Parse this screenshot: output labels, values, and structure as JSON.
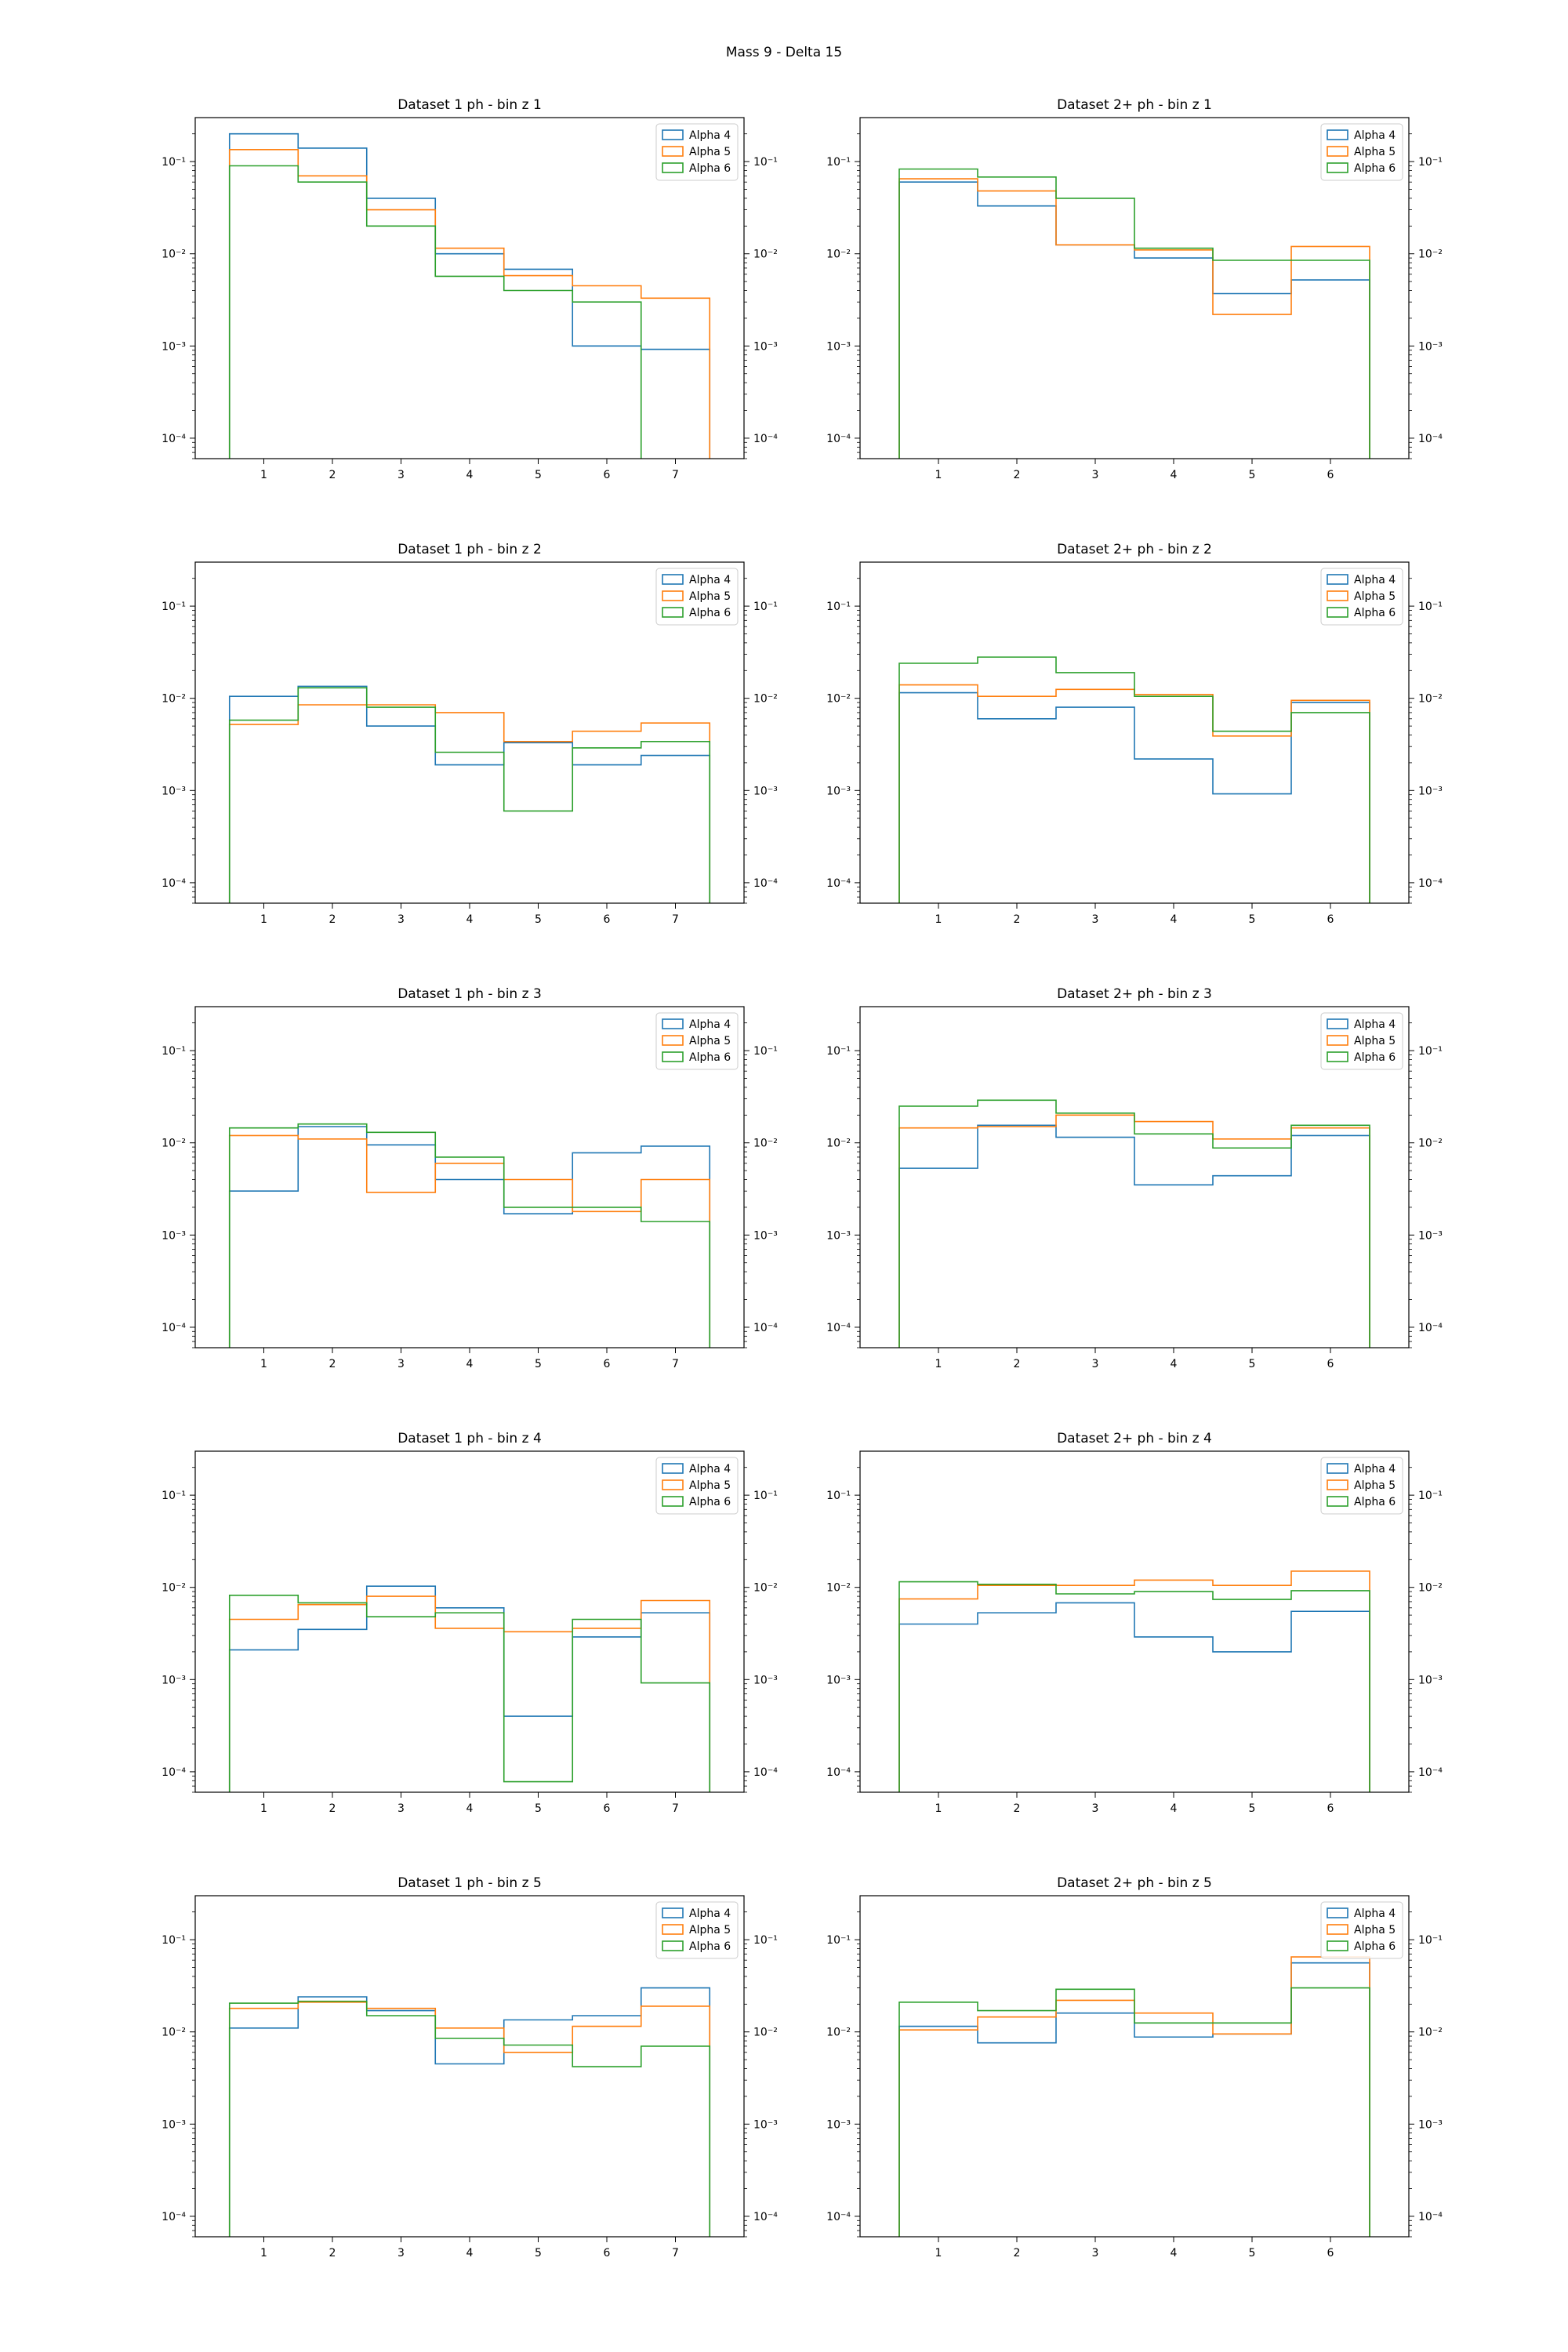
{
  "figure": {
    "title": "Mass 9 - Delta 15"
  },
  "legend_labels": [
    "Alpha 4",
    "Alpha 5",
    "Alpha 6"
  ],
  "colors": {
    "Alpha 4": "#1f77b4",
    "Alpha 5": "#ff7f0e",
    "Alpha 6": "#2ca02c"
  },
  "y_tick_labels": [
    "10⁻⁴",
    "10⁻³",
    "10⁻²",
    "10⁻¹"
  ],
  "chart_data": [
    {
      "type": "histogram-step",
      "title": "Dataset 1 ph - bin z 1",
      "yscale": "log",
      "ylim": [
        6e-05,
        0.3
      ],
      "xlim": [
        -0.0,
        8.0
      ],
      "xticks": [
        1,
        2,
        3,
        4,
        5,
        6,
        7
      ],
      "legend": "upper right",
      "grid": false,
      "categories": [
        1,
        2,
        3,
        4,
        5,
        6,
        7
      ],
      "series": [
        {
          "name": "Alpha 4",
          "values": [
            0.2,
            0.14,
            0.04,
            0.01,
            0.0068,
            0.001,
            0.00092
          ]
        },
        {
          "name": "Alpha 5",
          "values": [
            0.135,
            0.07,
            0.03,
            0.0115,
            0.0058,
            0.0045,
            0.0033
          ]
        },
        {
          "name": "Alpha 6",
          "values": [
            0.09,
            0.06,
            0.02,
            0.0057,
            0.004,
            0.003,
            0
          ]
        }
      ]
    },
    {
      "type": "histogram-step",
      "title": "Dataset 2+ ph - bin z 1",
      "yscale": "log",
      "ylim": [
        6e-05,
        0.3
      ],
      "xlim": [
        0.0,
        7.0
      ],
      "xticks": [
        1,
        2,
        3,
        4,
        5,
        6
      ],
      "legend": "upper right",
      "grid": false,
      "categories": [
        1,
        2,
        3,
        4,
        5,
        6
      ],
      "series": [
        {
          "name": "Alpha 4",
          "values": [
            0.06,
            0.033,
            0.0125,
            0.009,
            0.0037,
            0.0052
          ]
        },
        {
          "name": "Alpha 5",
          "values": [
            0.065,
            0.048,
            0.0125,
            0.011,
            0.0022,
            0.012
          ]
        },
        {
          "name": "Alpha 6",
          "values": [
            0.083,
            0.068,
            0.04,
            0.0115,
            0.0085,
            0.0085
          ]
        }
      ]
    },
    {
      "type": "histogram-step",
      "title": "Dataset 1 ph - bin z 2",
      "yscale": "log",
      "ylim": [
        6e-05,
        0.3
      ],
      "xlim": [
        0.0,
        8.0
      ],
      "xticks": [
        1,
        2,
        3,
        4,
        5,
        6,
        7
      ],
      "legend": "upper right",
      "grid": false,
      "categories": [
        1,
        2,
        3,
        4,
        5,
        6,
        7
      ],
      "series": [
        {
          "name": "Alpha 4",
          "values": [
            0.0105,
            0.0135,
            0.005,
            0.0019,
            0.0033,
            0.0019,
            0.0024
          ]
        },
        {
          "name": "Alpha 5",
          "values": [
            0.0052,
            0.0085,
            0.0085,
            0.007,
            0.0034,
            0.0044,
            0.0054
          ]
        },
        {
          "name": "Alpha 6",
          "values": [
            0.0058,
            0.013,
            0.008,
            0.0026,
            0.0006,
            0.0029,
            0.0034
          ]
        }
      ]
    },
    {
      "type": "histogram-step",
      "title": "Dataset 2+ ph - bin z 2",
      "yscale": "log",
      "ylim": [
        6e-05,
        0.3
      ],
      "xlim": [
        0.0,
        7.0
      ],
      "xticks": [
        1,
        2,
        3,
        4,
        5,
        6
      ],
      "legend": "upper right",
      "grid": false,
      "categories": [
        1,
        2,
        3,
        4,
        5,
        6
      ],
      "series": [
        {
          "name": "Alpha 4",
          "values": [
            0.0115,
            0.006,
            0.008,
            0.0022,
            0.00092,
            0.009
          ]
        },
        {
          "name": "Alpha 5",
          "values": [
            0.014,
            0.0105,
            0.0125,
            0.011,
            0.0039,
            0.0095
          ]
        },
        {
          "name": "Alpha 6",
          "values": [
            0.024,
            0.028,
            0.019,
            0.0105,
            0.0044,
            0.007
          ]
        }
      ]
    },
    {
      "type": "histogram-step",
      "title": "Dataset 1 ph - bin z 3",
      "yscale": "log",
      "ylim": [
        6e-05,
        0.3
      ],
      "xlim": [
        0.0,
        8.0
      ],
      "xticks": [
        1,
        2,
        3,
        4,
        5,
        6,
        7
      ],
      "legend": "upper right",
      "grid": false,
      "categories": [
        1,
        2,
        3,
        4,
        5,
        6,
        7
      ],
      "series": [
        {
          "name": "Alpha 4",
          "values": [
            0.003,
            0.015,
            0.0095,
            0.004,
            0.0017,
            0.0078,
            0.0092
          ]
        },
        {
          "name": "Alpha 5",
          "values": [
            0.012,
            0.011,
            0.0029,
            0.006,
            0.004,
            0.0018,
            0.004
          ]
        },
        {
          "name": "Alpha 6",
          "values": [
            0.0145,
            0.016,
            0.013,
            0.007,
            0.002,
            0.002,
            0.0014
          ]
        }
      ]
    },
    {
      "type": "histogram-step",
      "title": "Dataset 2+ ph - bin z 3",
      "yscale": "log",
      "ylim": [
        6e-05,
        0.3
      ],
      "xlim": [
        0.0,
        7.0
      ],
      "xticks": [
        1,
        2,
        3,
        4,
        5,
        6
      ],
      "legend": "upper right",
      "grid": false,
      "categories": [
        1,
        2,
        3,
        4,
        5,
        6
      ],
      "series": [
        {
          "name": "Alpha 4",
          "values": [
            0.0053,
            0.0155,
            0.0115,
            0.0035,
            0.0044,
            0.012
          ]
        },
        {
          "name": "Alpha 5",
          "values": [
            0.0145,
            0.015,
            0.02,
            0.017,
            0.011,
            0.0145
          ]
        },
        {
          "name": "Alpha 6",
          "values": [
            0.025,
            0.029,
            0.021,
            0.0125,
            0.0088,
            0.0155
          ]
        }
      ]
    },
    {
      "type": "histogram-step",
      "title": "Dataset 1 ph - bin z 4",
      "yscale": "log",
      "ylim": [
        6e-05,
        0.3
      ],
      "xlim": [
        0.0,
        8.0
      ],
      "xticks": [
        1,
        2,
        3,
        4,
        5,
        6,
        7
      ],
      "legend": "upper right",
      "grid": false,
      "categories": [
        1,
        2,
        3,
        4,
        5,
        6,
        7
      ],
      "series": [
        {
          "name": "Alpha 4",
          "values": [
            0.0021,
            0.0035,
            0.0103,
            0.006,
            0.0004,
            0.0029,
            0.0053
          ]
        },
        {
          "name": "Alpha 5",
          "values": [
            0.0045,
            0.0065,
            0.008,
            0.0036,
            0.0033,
            0.0036,
            0.0072
          ]
        },
        {
          "name": "Alpha 6",
          "values": [
            0.0082,
            0.0068,
            0.0048,
            0.0053,
            7.8e-05,
            0.0045,
            0.00092
          ]
        }
      ]
    },
    {
      "type": "histogram-step",
      "title": "Dataset 2+ ph - bin z 4",
      "yscale": "log",
      "ylim": [
        6e-05,
        0.3
      ],
      "xlim": [
        0.0,
        7.0
      ],
      "xticks": [
        1,
        2,
        3,
        4,
        5,
        6
      ],
      "legend": "upper right",
      "grid": false,
      "categories": [
        1,
        2,
        3,
        4,
        5,
        6
      ],
      "series": [
        {
          "name": "Alpha 4",
          "values": [
            0.004,
            0.0053,
            0.0068,
            0.0029,
            0.002,
            0.0055
          ]
        },
        {
          "name": "Alpha 5",
          "values": [
            0.0075,
            0.0105,
            0.0105,
            0.012,
            0.0105,
            0.015
          ]
        },
        {
          "name": "Alpha 6",
          "values": [
            0.0115,
            0.0108,
            0.0085,
            0.009,
            0.0074,
            0.0092
          ]
        }
      ]
    },
    {
      "type": "histogram-step",
      "title": "Dataset 1 ph - bin z 5",
      "yscale": "log",
      "ylim": [
        6e-05,
        0.3
      ],
      "xlim": [
        0.0,
        8.0
      ],
      "xticks": [
        1,
        2,
        3,
        4,
        5,
        6,
        7
      ],
      "legend": "upper right",
      "grid": false,
      "categories": [
        1,
        2,
        3,
        4,
        5,
        6,
        7
      ],
      "series": [
        {
          "name": "Alpha 4",
          "values": [
            0.011,
            0.024,
            0.017,
            0.0045,
            0.0135,
            0.015,
            0.03
          ]
        },
        {
          "name": "Alpha 5",
          "values": [
            0.018,
            0.021,
            0.018,
            0.011,
            0.006,
            0.0115,
            0.019
          ]
        },
        {
          "name": "Alpha 6",
          "values": [
            0.0205,
            0.0215,
            0.015,
            0.0085,
            0.0072,
            0.0042,
            0.007
          ]
        }
      ]
    },
    {
      "type": "histogram-step",
      "title": "Dataset 2+ ph - bin z 5",
      "yscale": "log",
      "ylim": [
        6e-05,
        0.3
      ],
      "xlim": [
        0.0,
        7.0
      ],
      "xticks": [
        1,
        2,
        3,
        4,
        5,
        6
      ],
      "legend": "upper right",
      "grid": false,
      "categories": [
        1,
        2,
        3,
        4,
        5,
        6
      ],
      "series": [
        {
          "name": "Alpha 4",
          "values": [
            0.0115,
            0.0076,
            0.016,
            0.0088,
            0.0095,
            0.056
          ]
        },
        {
          "name": "Alpha 5",
          "values": [
            0.0105,
            0.0145,
            0.022,
            0.016,
            0.0095,
            0.065
          ]
        },
        {
          "name": "Alpha 6",
          "values": [
            0.021,
            0.017,
            0.029,
            0.0125,
            0.0125,
            0.03
          ]
        }
      ]
    }
  ]
}
